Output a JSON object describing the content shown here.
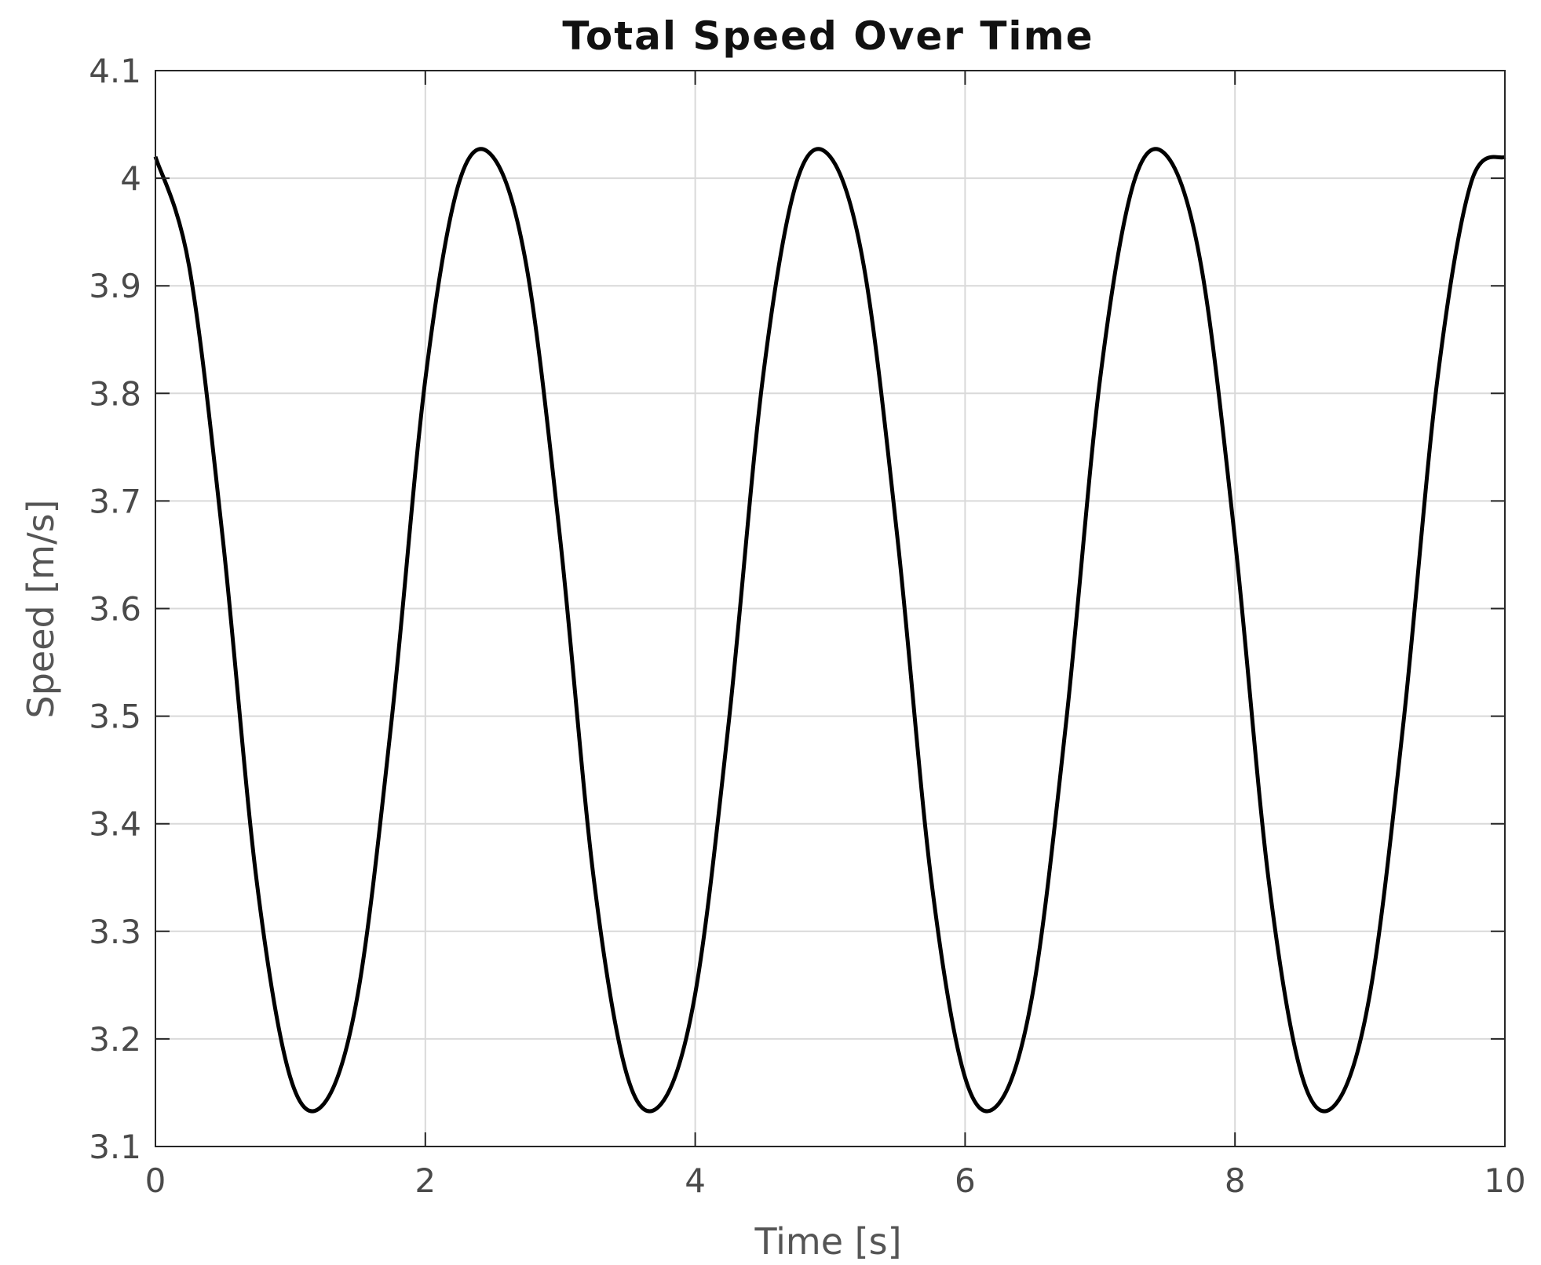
{
  "chart_data": {
    "type": "line",
    "title": "Total Speed Over Time",
    "xlabel": "Time [s]",
    "ylabel": "Speed [m/s]",
    "xlim": [
      0,
      10
    ],
    "ylim": [
      3.1,
      4.1
    ],
    "xticks": [
      0,
      2,
      4,
      6,
      8,
      10
    ],
    "xtick_labels": [
      "0",
      "2",
      "4",
      "6",
      "8",
      "10"
    ],
    "yticks": [
      3.1,
      3.2,
      3.3,
      3.4,
      3.5,
      3.6,
      3.7,
      3.8,
      3.9,
      4.0,
      4.1
    ],
    "ytick_labels": [
      "3.1",
      "3.2",
      "3.3",
      "3.4",
      "3.5",
      "3.6",
      "3.7",
      "3.8",
      "3.9",
      "4",
      "4.1"
    ],
    "grid": true,
    "legend": "none",
    "line_color": "#000000",
    "grid_color": "#d9d9d9",
    "series": [
      {
        "x": [
          0,
          0.25,
          0.5,
          0.75,
          1.0,
          1.25,
          1.5,
          1.75,
          2.0,
          2.25,
          2.5,
          2.75,
          3.0,
          3.25,
          3.5,
          3.75,
          4.0,
          4.25,
          4.5,
          4.75,
          5.0,
          5.25,
          5.5,
          5.75,
          6.0,
          6.25,
          6.5,
          6.75,
          7.0,
          7.25,
          7.5,
          7.75,
          8.0,
          8.25,
          8.5,
          8.75,
          9.0,
          9.25,
          9.5,
          9.75,
          10.0
        ],
        "y": [
          4.02,
          3.918,
          3.664,
          3.347,
          3.164,
          3.14,
          3.242,
          3.496,
          3.813,
          3.996,
          4.02,
          3.918,
          3.664,
          3.347,
          3.164,
          3.14,
          3.242,
          3.496,
          3.813,
          3.996,
          4.02,
          3.918,
          3.664,
          3.347,
          3.164,
          3.14,
          3.242,
          3.496,
          3.813,
          3.996,
          4.02,
          3.918,
          3.664,
          3.347,
          3.164,
          3.14,
          3.242,
          3.496,
          3.813,
          3.996,
          4.02
        ]
      }
    ]
  }
}
